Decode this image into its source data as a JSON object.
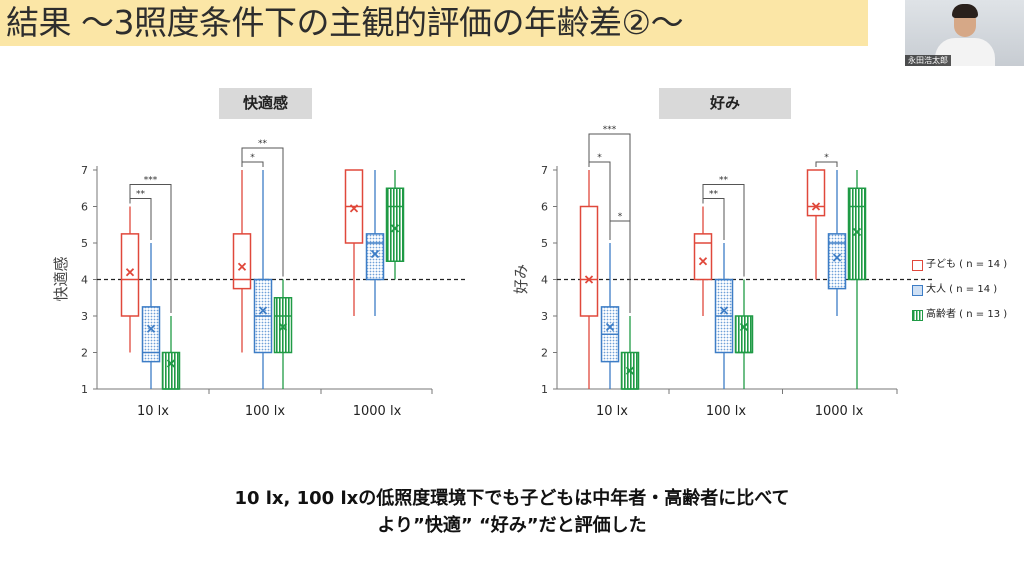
{
  "slide": {
    "title": "結果 〜3照度条件下の主観的評価の年齢差②〜",
    "conclusion_line1": "10 lx, 100 lxの低照度環境下でも子どもは中年者・高齢者に比べて",
    "conclusion_line2": "より”快適” “好み”だと評価した"
  },
  "video": {
    "name": "永田浩太郎"
  },
  "colors": {
    "child": "#e0483b",
    "adult": "#3d7dc6",
    "elderly": "#1f9a45",
    "title_band": "#fbe6a6",
    "panel_label_bg": "#d9d9d9"
  },
  "legend": [
    {
      "label": "子ども ( n = 14 )",
      "group": "child"
    },
    {
      "label": "大人 ( n = 14 )",
      "group": "adult"
    },
    {
      "label": "高齢者 ( n = 13 )",
      "group": "elderly"
    }
  ],
  "chart_data": [
    {
      "type": "box",
      "title": "快適感",
      "ylabel": "快適感",
      "ylim": [
        1,
        7
      ],
      "yticks": [
        1,
        2,
        3,
        4,
        5,
        6,
        7
      ],
      "reference_line": 4,
      "categories": [
        "10 lx",
        "100 lx",
        "1000 lx"
      ],
      "series": [
        {
          "name": "子ども",
          "group": "child",
          "boxes": [
            {
              "min": 2,
              "q1": 3,
              "median": 4,
              "q3": 5.25,
              "max": 6,
              "mean": 4.2
            },
            {
              "min": 2,
              "q1": 3.75,
              "median": 4,
              "q3": 5.25,
              "max": 7,
              "mean": 4.35
            },
            {
              "min": 3,
              "q1": 5,
              "median": 6,
              "q3": 7,
              "max": 7,
              "mean": 5.95
            }
          ]
        },
        {
          "name": "大人",
          "group": "adult",
          "boxes": [
            {
              "min": 1,
              "q1": 1.75,
              "median": 2,
              "q3": 3.25,
              "max": 5,
              "mean": 2.65
            },
            {
              "min": 1,
              "q1": 2,
              "median": 3,
              "q3": 4,
              "max": 7,
              "mean": 3.15
            },
            {
              "min": 3,
              "q1": 4,
              "median": 5,
              "q3": 5.25,
              "max": 7,
              "mean": 4.7
            }
          ]
        },
        {
          "name": "高齢者",
          "group": "elderly",
          "boxes": [
            {
              "min": 1,
              "q1": 1,
              "median": 1,
              "q3": 2,
              "max": 3,
              "mean": 1.7
            },
            {
              "min": 1,
              "q1": 2,
              "median": 3,
              "q3": 3.5,
              "max": 4,
              "mean": 2.7
            },
            {
              "min": 4,
              "q1": 4.5,
              "median": 6,
              "q3": 6.5,
              "max": 7,
              "mean": 5.4
            }
          ]
        }
      ],
      "significance": [
        {
          "condition": 0,
          "from": 0,
          "to": 1,
          "label": "**"
        },
        {
          "condition": 0,
          "from": 0,
          "to": 2,
          "label": "***"
        },
        {
          "condition": 1,
          "from": 0,
          "to": 1,
          "label": "*"
        },
        {
          "condition": 1,
          "from": 0,
          "to": 2,
          "label": "**"
        }
      ]
    },
    {
      "type": "box",
      "title": "好み",
      "ylabel": "好み",
      "ylim": [
        1,
        7
      ],
      "yticks": [
        1,
        2,
        3,
        4,
        5,
        6,
        7
      ],
      "reference_line": 4,
      "categories": [
        "10 lx",
        "100 lx",
        "1000 lx"
      ],
      "series": [
        {
          "name": "子ども",
          "group": "child",
          "boxes": [
            {
              "min": 1,
              "q1": 3,
              "median": 4,
              "q3": 6,
              "max": 7,
              "mean": 4
            },
            {
              "min": 3,
              "q1": 4,
              "median": 5,
              "q3": 5.25,
              "max": 6,
              "mean": 4.5
            },
            {
              "min": 4,
              "q1": 5.75,
              "median": 6,
              "q3": 7,
              "max": 7,
              "mean": 6
            }
          ]
        },
        {
          "name": "大人",
          "group": "adult",
          "boxes": [
            {
              "min": 1,
              "q1": 1.75,
              "median": 2.5,
              "q3": 3.25,
              "max": 5,
              "mean": 2.7
            },
            {
              "min": 1,
              "q1": 2,
              "median": 3,
              "q3": 4,
              "max": 5,
              "mean": 3.15
            },
            {
              "min": 3,
              "q1": 3.75,
              "median": 5,
              "q3": 5.25,
              "max": 7,
              "mean": 4.6
            }
          ]
        },
        {
          "name": "高齢者",
          "group": "elderly",
          "boxes": [
            {
              "min": 1,
              "q1": 1,
              "median": 1,
              "q3": 2,
              "max": 3,
              "mean": 1.5
            },
            {
              "min": 1,
              "q1": 2,
              "median": 2,
              "q3": 3,
              "max": 4,
              "mean": 2.7
            },
            {
              "min": 1,
              "q1": 4,
              "median": 6,
              "q3": 6.5,
              "max": 7,
              "mean": 5.3
            }
          ]
        }
      ],
      "significance": [
        {
          "condition": 0,
          "from": 0,
          "to": 1,
          "label": "*"
        },
        {
          "condition": 0,
          "from": 1,
          "to": 2,
          "label": "*"
        },
        {
          "condition": 0,
          "from": 0,
          "to": 2,
          "label": "***"
        },
        {
          "condition": 1,
          "from": 0,
          "to": 1,
          "label": "**"
        },
        {
          "condition": 1,
          "from": 0,
          "to": 2,
          "label": "**"
        },
        {
          "condition": 2,
          "from": 0,
          "to": 1,
          "label": "*"
        }
      ]
    }
  ]
}
